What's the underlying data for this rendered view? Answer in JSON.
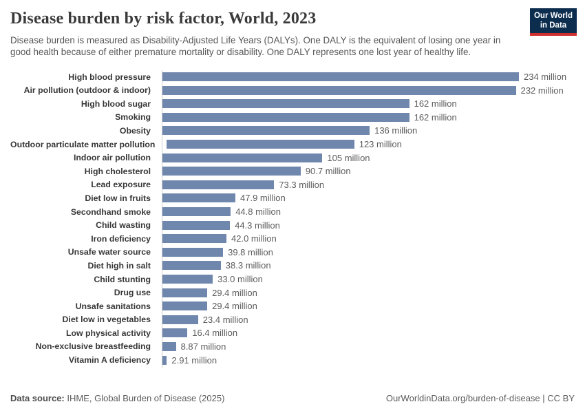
{
  "header": {
    "title": "Disease burden by risk factor, World, 2023",
    "subtitle": "Disease burden is measured as Disability-Adjusted Life Years (DALYs). One DALY is the equivalent of losing one year in good health because of either premature mortality or disability. One DALY represents one lost year of healthy life.",
    "logo": {
      "line1": "Our World",
      "line2": "in Data"
    }
  },
  "colors": {
    "bar": "#6f87ac",
    "axis_line": "#cfcfcf",
    "logo_navy": "#0d2d4f",
    "logo_red": "#cf2e2e",
    "title_text": "#3a3a3a",
    "subtitle_text": "#565656",
    "label_text": "#373737",
    "value_text": "#5c5c5c"
  },
  "chart_data": {
    "type": "bar",
    "orientation": "horizontal",
    "title": "Disease burden by risk factor, World, 2023",
    "unit": "DALYs (million)",
    "xlim": [
      0,
      234
    ],
    "grid": false,
    "legend": false,
    "categories": [
      "High blood pressure",
      "Air pollution (outdoor & indoor)",
      "High blood sugar",
      "Smoking",
      "Obesity",
      "Outdoor particulate matter pollution",
      "Indoor air pollution",
      "High cholesterol",
      "Lead exposure",
      "Diet low in fruits",
      "Secondhand smoke",
      "Child wasting",
      "Iron deficiency",
      "Unsafe water source",
      "Diet high in salt",
      "Child stunting",
      "Drug use",
      "Unsafe sanitations",
      "Diet low in vegetables",
      "Low physical activity",
      "Non-exclusive breastfeeding",
      "Vitamin A deficiency"
    ],
    "values": [
      234,
      232,
      162,
      162,
      136,
      123,
      105,
      90.7,
      73.3,
      47.9,
      44.8,
      44.3,
      42.0,
      39.8,
      38.3,
      33.0,
      29.4,
      29.4,
      23.4,
      16.4,
      8.87,
      2.91
    ],
    "value_labels": [
      "234 million",
      "232 million",
      "162 million",
      "162 million",
      "136 million",
      "123 million",
      "105 million",
      "90.7 million",
      "73.3 million",
      "47.9 million",
      "44.8 million",
      "44.3 million",
      "42.0 million",
      "39.8 million",
      "38.3 million",
      "33.0 million",
      "29.4 million",
      "29.4 million",
      "23.4 million",
      "16.4 million",
      "8.87 million",
      "2.91 million"
    ]
  },
  "footer": {
    "datasource_label": "Data source:",
    "datasource_value": " IHME, Global Burden of Disease (2025)",
    "link": "OurWorldinData.org/burden-of-disease",
    "separator": " | ",
    "license": "CC BY"
  }
}
